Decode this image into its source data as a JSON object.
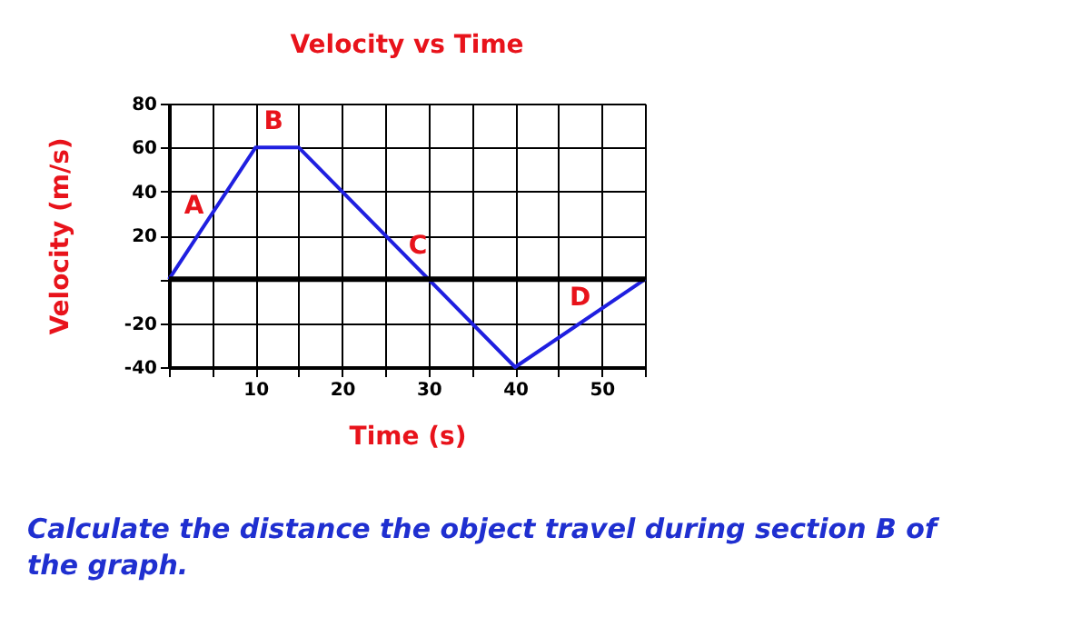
{
  "chart_data": {
    "type": "line",
    "title": "Velocity vs Time",
    "xlabel": "Time (s)",
    "ylabel": "Velocity (m/s)",
    "x": [
      0,
      10,
      15,
      40,
      55
    ],
    "series": [
      {
        "color": "#1f1fe0",
        "values": [
          0,
          60,
          60,
          -40,
          0
        ]
      }
    ],
    "xlim": [
      0,
      55
    ],
    "ylim": [
      -40,
      80
    ],
    "xticks": [
      {
        "value": 0,
        "label": null
      },
      {
        "value": 5,
        "label": null
      },
      10,
      {
        "value": 15,
        "label": null
      },
      20,
      {
        "value": 25,
        "label": null
      },
      30,
      {
        "value": 35,
        "label": null
      },
      40,
      {
        "value": 45,
        "label": null
      },
      50,
      {
        "value": 55,
        "label": null
      }
    ],
    "yticks": [
      -40,
      -20,
      {
        "value": 0,
        "label": null
      },
      20,
      40,
      60,
      80
    ],
    "grid": true,
    "marker": "none",
    "line_style": "solid",
    "ref_lines": [
      {
        "axis": "y",
        "value": 0,
        "color": "#000000"
      }
    ],
    "annotations": [
      "A",
      "B",
      "C",
      "D",
      "Calculate the distance the object travel during section B of the graph."
    ]
  }
}
